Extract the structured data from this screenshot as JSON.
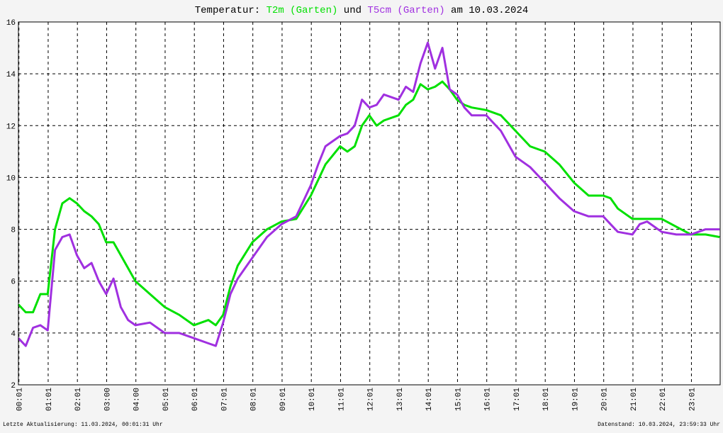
{
  "chart_data": {
    "type": "line",
    "title_parts": [
      "Temperatur:",
      "und",
      "am 10.03.2024"
    ],
    "footer_left": "Letzte Aktualisierung: 11.03.2024, 00:01:31 Uhr",
    "footer_right": "Datenstand: 10.03.2024, 23:59:33 Uhr",
    "x": [
      0,
      0.25,
      0.5,
      0.75,
      1,
      1.25,
      1.5,
      1.75,
      2,
      2.25,
      2.5,
      2.75,
      3,
      3.25,
      3.5,
      3.75,
      4,
      4.5,
      5,
      5.5,
      6,
      6.5,
      6.75,
      7,
      7.25,
      7.5,
      8,
      8.5,
      9,
      9.5,
      10,
      10.25,
      10.5,
      11,
      11.25,
      11.5,
      11.75,
      12,
      12.25,
      12.5,
      13,
      13.25,
      13.5,
      13.75,
      14,
      14.25,
      14.5,
      14.75,
      15,
      15.25,
      15.5,
      16,
      16.5,
      17,
      17.5,
      18,
      18.5,
      19,
      19.5,
      20,
      20.25,
      20.5,
      21,
      21.25,
      21.5,
      22,
      22.5,
      23,
      23.5,
      23.98
    ],
    "series": [
      {
        "name": "T2m (Garten)",
        "color": "#00e000",
        "values": [
          5.1,
          4.8,
          4.8,
          5.5,
          5.5,
          8.0,
          9.0,
          9.2,
          9.0,
          8.7,
          8.5,
          8.2,
          7.5,
          7.5,
          7.0,
          6.5,
          6.0,
          5.5,
          5.0,
          4.7,
          4.3,
          4.5,
          4.3,
          4.7,
          5.8,
          6.6,
          7.5,
          8.0,
          8.3,
          8.4,
          9.3,
          9.9,
          10.5,
          11.2,
          11.0,
          11.2,
          12.0,
          12.4,
          12.0,
          12.2,
          12.4,
          12.8,
          13.0,
          13.6,
          13.4,
          13.5,
          13.7,
          13.4,
          13.0,
          12.8,
          12.7,
          12.6,
          12.4,
          11.8,
          11.2,
          11.0,
          10.5,
          9.8,
          9.3,
          9.3,
          9.2,
          8.8,
          8.4,
          8.4,
          8.4,
          8.4,
          8.1,
          7.8,
          7.8,
          7.7
        ]
      },
      {
        "name": "T5cm (Garten)",
        "color": "#a030e0",
        "values": [
          3.8,
          3.5,
          4.2,
          4.3,
          4.1,
          7.2,
          7.7,
          7.8,
          7.0,
          6.5,
          6.7,
          6.0,
          5.5,
          6.1,
          5.0,
          4.5,
          4.3,
          4.4,
          4.0,
          4.0,
          3.8,
          3.6,
          3.5,
          4.4,
          5.5,
          6.1,
          6.9,
          7.7,
          8.2,
          8.5,
          9.7,
          10.5,
          11.2,
          11.6,
          11.7,
          12.0,
          13.0,
          12.7,
          12.8,
          13.2,
          13.0,
          13.5,
          13.3,
          14.4,
          15.2,
          14.2,
          15.0,
          13.4,
          13.2,
          12.7,
          12.4,
          12.4,
          11.8,
          10.8,
          10.4,
          9.8,
          9.2,
          8.7,
          8.5,
          8.5,
          8.2,
          7.9,
          7.8,
          8.2,
          8.3,
          7.9,
          7.8,
          7.8,
          8.0,
          8.0
        ]
      }
    ],
    "xlim": [
      0,
      24
    ],
    "xticks": [
      {
        "value": 0.017,
        "label": "00:01"
      },
      {
        "value": 1.017,
        "label": "01:01"
      },
      {
        "value": 2.017,
        "label": "02:01"
      },
      {
        "value": 3.017,
        "label": "03:00"
      },
      {
        "value": 4.017,
        "label": "04:00"
      },
      {
        "value": 5.017,
        "label": "05:01"
      },
      {
        "value": 6.017,
        "label": "06:01"
      },
      {
        "value": 7.017,
        "label": "07:01"
      },
      {
        "value": 8.017,
        "label": "08:01"
      },
      {
        "value": 9.017,
        "label": "09:01"
      },
      {
        "value": 10.017,
        "label": "10:01"
      },
      {
        "value": 11.017,
        "label": "11:01"
      },
      {
        "value": 12.017,
        "label": "12:01"
      },
      {
        "value": 13.017,
        "label": "13:01"
      },
      {
        "value": 14.017,
        "label": "14:01"
      },
      {
        "value": 15.017,
        "label": "15:01"
      },
      {
        "value": 16.017,
        "label": "16:01"
      },
      {
        "value": 17.017,
        "label": "17:01"
      },
      {
        "value": 18.017,
        "label": "18:01"
      },
      {
        "value": 19.017,
        "label": "19:01"
      },
      {
        "value": 20.017,
        "label": "20:01"
      },
      {
        "value": 21.017,
        "label": "21:01"
      },
      {
        "value": 22.017,
        "label": "22:01"
      },
      {
        "value": 23.017,
        "label": "23:01"
      }
    ],
    "ylim": [
      2,
      16
    ],
    "yticks": [
      2,
      4,
      6,
      8,
      10,
      12,
      14,
      16
    ],
    "grid": true
  }
}
